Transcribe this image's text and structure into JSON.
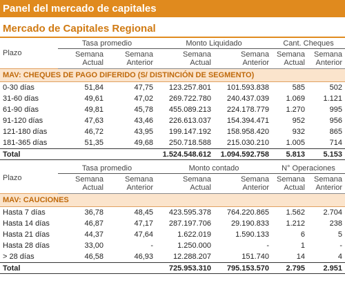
{
  "header": {
    "title": "Panel del mercado de capitales"
  },
  "subtitle": "Mercado de Capitales Regional",
  "table1": {
    "plazo_label": "Plazo",
    "groups": [
      "Tasa promedio",
      "Monto Liquidado",
      "Cant. Cheques"
    ],
    "col_actual": [
      "Semana",
      "Actual"
    ],
    "col_anterior": [
      "Semana",
      "Anterior"
    ],
    "section_title": "MAV: CHEQUES DE PAGO DIFERIDO (S/ DISTINCIÓN DE SEGMENTO)",
    "rows": [
      [
        "0-30 días",
        "51,84",
        "47,75",
        "123.257.801",
        "101.593.838",
        "585",
        "502"
      ],
      [
        "31-60 días",
        "49,61",
        "47,02",
        "269.722.780",
        "240.437.039",
        "1.069",
        "1.121"
      ],
      [
        "61-90 días",
        "49,81",
        "45,78",
        "455.089.213",
        "224.178.779",
        "1.270",
        "995"
      ],
      [
        "91-120 días",
        "47,63",
        "43,46",
        "226.613.037",
        "154.394.471",
        "952",
        "956"
      ],
      [
        "121-180 días",
        "46,72",
        "43,95",
        "199.147.192",
        "158.958.420",
        "932",
        "865"
      ],
      [
        "181-365 días",
        "51,35",
        "49,68",
        "250.718.588",
        "215.030.210",
        "1.005",
        "714"
      ]
    ],
    "total": [
      "Total",
      "",
      "",
      "1.524.548.612",
      "1.094.592.758",
      "5.813",
      "5.153"
    ]
  },
  "table2": {
    "section_title": "MAV: CAUCIONES",
    "plazo_label": "Plazo",
    "groups": [
      "Tasa promedio",
      "Monto contado",
      "N° Operaciones"
    ],
    "col_actual": [
      "Semana",
      "Actual"
    ],
    "col_anterior": [
      "Semana",
      "Anterior"
    ],
    "rows": [
      [
        "Hasta 7 días",
        "36,78",
        "48,45",
        "423.595.378",
        "764.220.865",
        "1.562",
        "2.704"
      ],
      [
        "Hasta 14 días",
        "46,87",
        "47,17",
        "287.197.706",
        "29.190.833",
        "1.212",
        "238"
      ],
      [
        "Hasta 21 días",
        "44,37",
        "47,64",
        "1.622.019",
        "1.590.133",
        "6",
        "5"
      ],
      [
        "Hasta 28 días",
        "33,00",
        "-",
        "1.250.000",
        "-",
        "1",
        "-"
      ],
      [
        "> 28 días",
        "46,58",
        "46,93",
        "12.288.207",
        "151.740",
        "14",
        "4"
      ]
    ],
    "total": [
      "Total",
      "",
      "",
      "725.953.310",
      "795.153.570",
      "2.795",
      "2.951"
    ]
  }
}
